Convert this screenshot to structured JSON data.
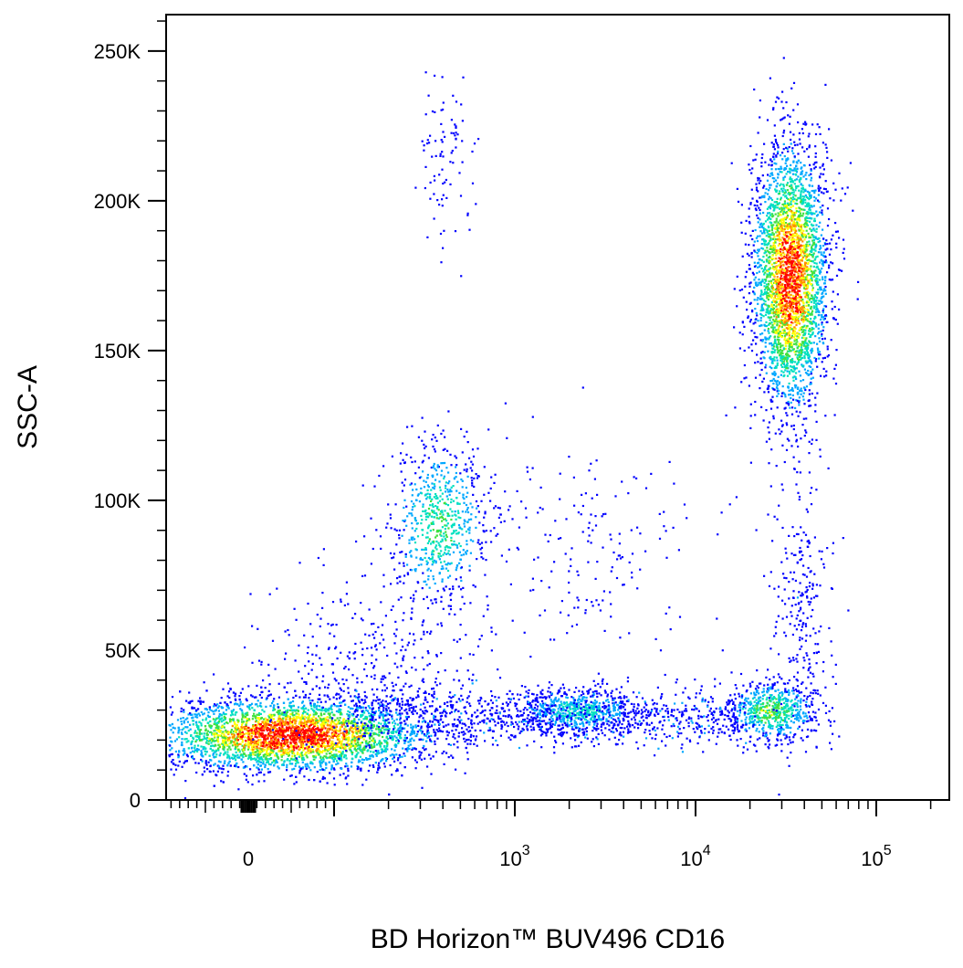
{
  "chart_data": {
    "type": "scatter",
    "subtype": "flow-cytometry-density-dot-plot",
    "title": "",
    "xlabel": "BD Horizon™ BUV496 CD16",
    "ylabel": "SSC-A",
    "x_scale": "biexponential",
    "y_scale": "linear",
    "xlim": [
      -300,
      250000
    ],
    "ylim": [
      0,
      262144
    ],
    "x_tick_labels": [
      {
        "label": "0",
        "sup": "",
        "value": 0
      },
      {
        "label": "10",
        "sup": "3",
        "value": 1000
      },
      {
        "label": "10",
        "sup": "4",
        "value": 10000
      },
      {
        "label": "10",
        "sup": "5",
        "value": 100000
      }
    ],
    "y_tick_labels": [
      {
        "label": "0",
        "value": 0
      },
      {
        "label": "50K",
        "value": 50000
      },
      {
        "label": "100K",
        "value": 100000
      },
      {
        "label": "150K",
        "value": 150000
      },
      {
        "label": "200K",
        "value": 200000
      },
      {
        "label": "250K",
        "value": 250000
      }
    ],
    "color_scale": [
      "#0000ff",
      "#00a8ff",
      "#00e0c0",
      "#40e040",
      "#ffff00",
      "#ff8c00",
      "#ff0000"
    ],
    "grid": false,
    "legend": "none",
    "populations": [
      {
        "center_x": 50,
        "center_y": 22000,
        "spread_x": 90,
        "spread_y": 6000,
        "count": 4200,
        "peak_density": 1.0
      },
      {
        "center_x": 2200,
        "center_y": 30000,
        "spread_x": 1200,
        "spread_y": 4000,
        "count": 700,
        "peak_density": 0.35
      },
      {
        "center_x": 33000,
        "center_y": 175000,
        "spread_x": 9000,
        "spread_y": 22000,
        "count": 3200,
        "peak_density": 0.95
      },
      {
        "center_x": 380,
        "center_y": 92000,
        "spread_x": 140,
        "spread_y": 14000,
        "count": 700,
        "peak_density": 0.45
      },
      {
        "center_x": 26000,
        "center_y": 30000,
        "spread_x": 9000,
        "spread_y": 5000,
        "count": 650,
        "peak_density": 0.5
      },
      {
        "center_x": 38000,
        "center_y": 65000,
        "spread_x": 8000,
        "spread_y": 22000,
        "count": 250,
        "peak_density": 0.12
      },
      {
        "center_x": 420,
        "center_y": 215000,
        "spread_x": 80,
        "spread_y": 14000,
        "count": 90,
        "peak_density": 0.08
      },
      {
        "center_x": 2500,
        "center_y": 85000,
        "spread_x": 2500,
        "spread_y": 20000,
        "count": 180,
        "peak_density": 0.08
      },
      {
        "center_x": 150,
        "center_y": 45000,
        "spread_x": 150,
        "spread_y": 14000,
        "count": 350,
        "peak_density": 0.12
      }
    ]
  }
}
